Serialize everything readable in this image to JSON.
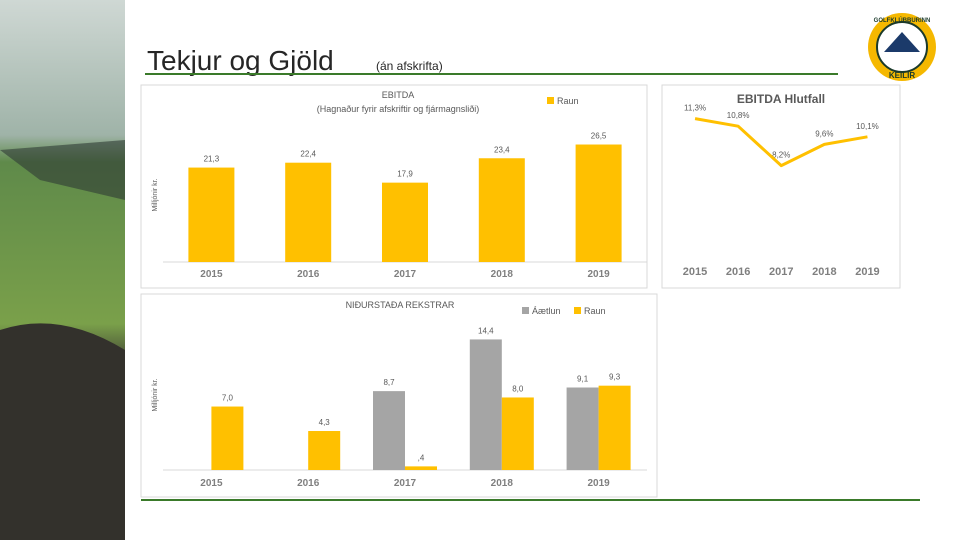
{
  "title": "Tekjur og Gjöld",
  "subtitle": "(án afskrifta)",
  "logo": {
    "top": "GOLFKLÚBBURINN",
    "bottom": "KEILIR"
  },
  "chart_data": [
    {
      "type": "bar",
      "title": "EBITDA",
      "subtitle": "(Hagnaður fyrir afskriftir og fjármagnsliði)",
      "y_label": "Milljónir kr.",
      "categories": [
        "2015",
        "2016",
        "2017",
        "2018",
        "2019"
      ],
      "series": [
        {
          "name": "Raun",
          "color": "#ffc000",
          "values": [
            21.3,
            22.4,
            17.9,
            23.4,
            26.5
          ],
          "value_labels": [
            "21,3",
            "22,4",
            "17,9",
            "23,4",
            "26,5"
          ]
        }
      ],
      "ylim": [
        0,
        30
      ]
    },
    {
      "type": "line",
      "title": "EBITDA Hlutfall",
      "categories": [
        "2015",
        "2016",
        "2017",
        "2018",
        "2019"
      ],
      "series": [
        {
          "name": "EBITDA Hlutfall",
          "color": "#ffc000",
          "values": [
            11.3,
            10.8,
            8.2,
            9.6,
            10.1
          ],
          "value_labels": [
            "11,3%",
            "10,8%",
            "8,2%",
            "9,6%",
            "10,1%"
          ]
        }
      ],
      "ylim": [
        6,
        12
      ]
    },
    {
      "type": "bar",
      "title": "NIÐURSTAÐA REKSTRAR",
      "y_label": "Milljónir kr.",
      "categories": [
        "2015",
        "2016",
        "2017",
        "2018",
        "2019"
      ],
      "series": [
        {
          "name": "Áætlun",
          "color": "#a5a5a5",
          "values": [
            null,
            null,
            8.7,
            14.4,
            9.1
          ],
          "value_labels": [
            null,
            null,
            "8,7",
            "14,4",
            "9,1"
          ]
        },
        {
          "name": "Raun",
          "color": "#ffc000",
          "values": [
            7.0,
            4.3,
            0.4,
            8.0,
            9.3
          ],
          "value_labels": [
            "7,0",
            "4,3",
            ",4",
            "8,0",
            "9,3"
          ]
        }
      ],
      "ylim": [
        0,
        15
      ]
    }
  ]
}
